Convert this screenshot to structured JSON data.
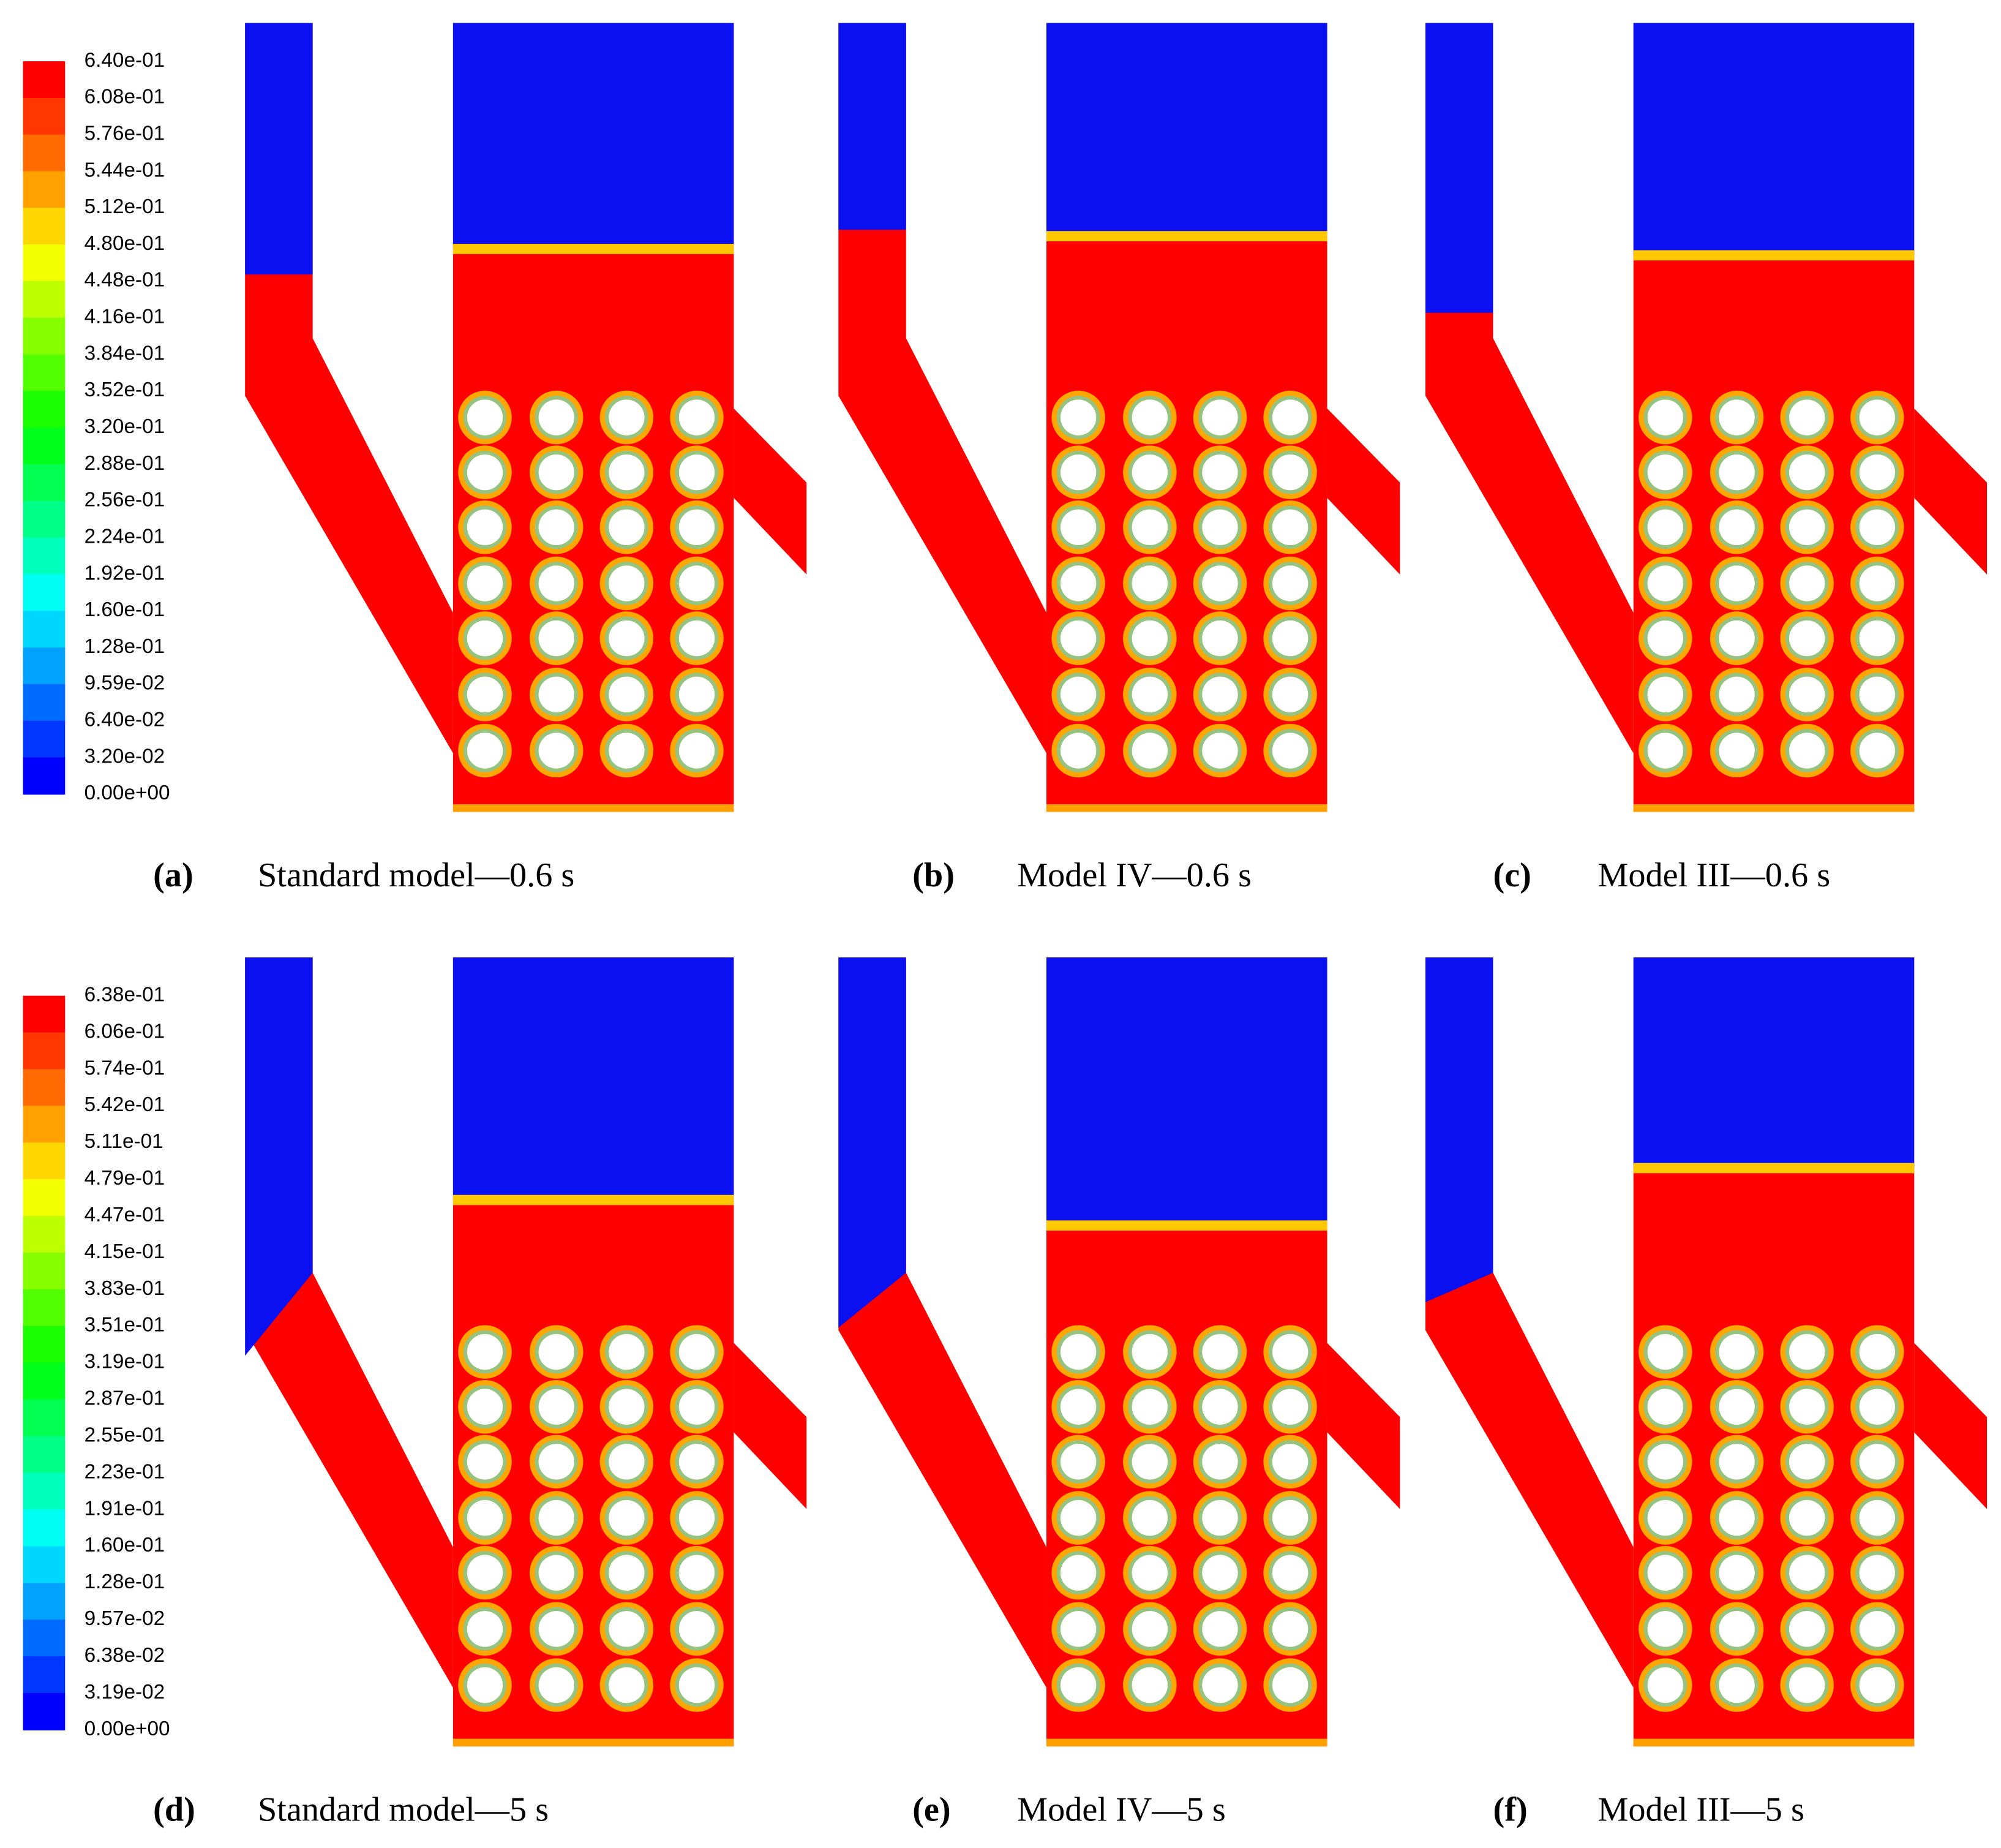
{
  "colorbars": [
    {
      "labels": [
        "6.40e-01",
        "6.08e-01",
        "5.76e-01",
        "5.44e-01",
        "5.12e-01",
        "4.80e-01",
        "4.48e-01",
        "4.16e-01",
        "3.84e-01",
        "3.52e-01",
        "3.20e-01",
        "2.88e-01",
        "2.56e-01",
        "2.24e-01",
        "1.92e-01",
        "1.60e-01",
        "1.28e-01",
        "9.59e-02",
        "6.40e-02",
        "3.20e-02",
        "0.00e+00"
      ]
    },
    {
      "labels": [
        "6.38e-01",
        "6.06e-01",
        "5.74e-01",
        "5.42e-01",
        "5.11e-01",
        "4.79e-01",
        "4.47e-01",
        "4.15e-01",
        "3.83e-01",
        "3.51e-01",
        "3.19e-01",
        "2.87e-01",
        "2.55e-01",
        "2.23e-01",
        "1.91e-01",
        "1.60e-01",
        "1.28e-01",
        "9.57e-02",
        "6.38e-02",
        "3.19e-02",
        "0.00e+00"
      ]
    }
  ],
  "panels": [
    {
      "label": "(a)",
      "caption": "Standard model—0.6 s"
    },
    {
      "label": "(b)",
      "caption": "Model IV—0.6 s"
    },
    {
      "label": "(c)",
      "caption": "Model III—0.6 s"
    },
    {
      "label": "(d)",
      "caption": "Standard model—5 s"
    },
    {
      "label": "(e)",
      "caption": "Model IV—5 s"
    },
    {
      "label": "(f)",
      "caption": "Model III—5 s"
    }
  ]
}
